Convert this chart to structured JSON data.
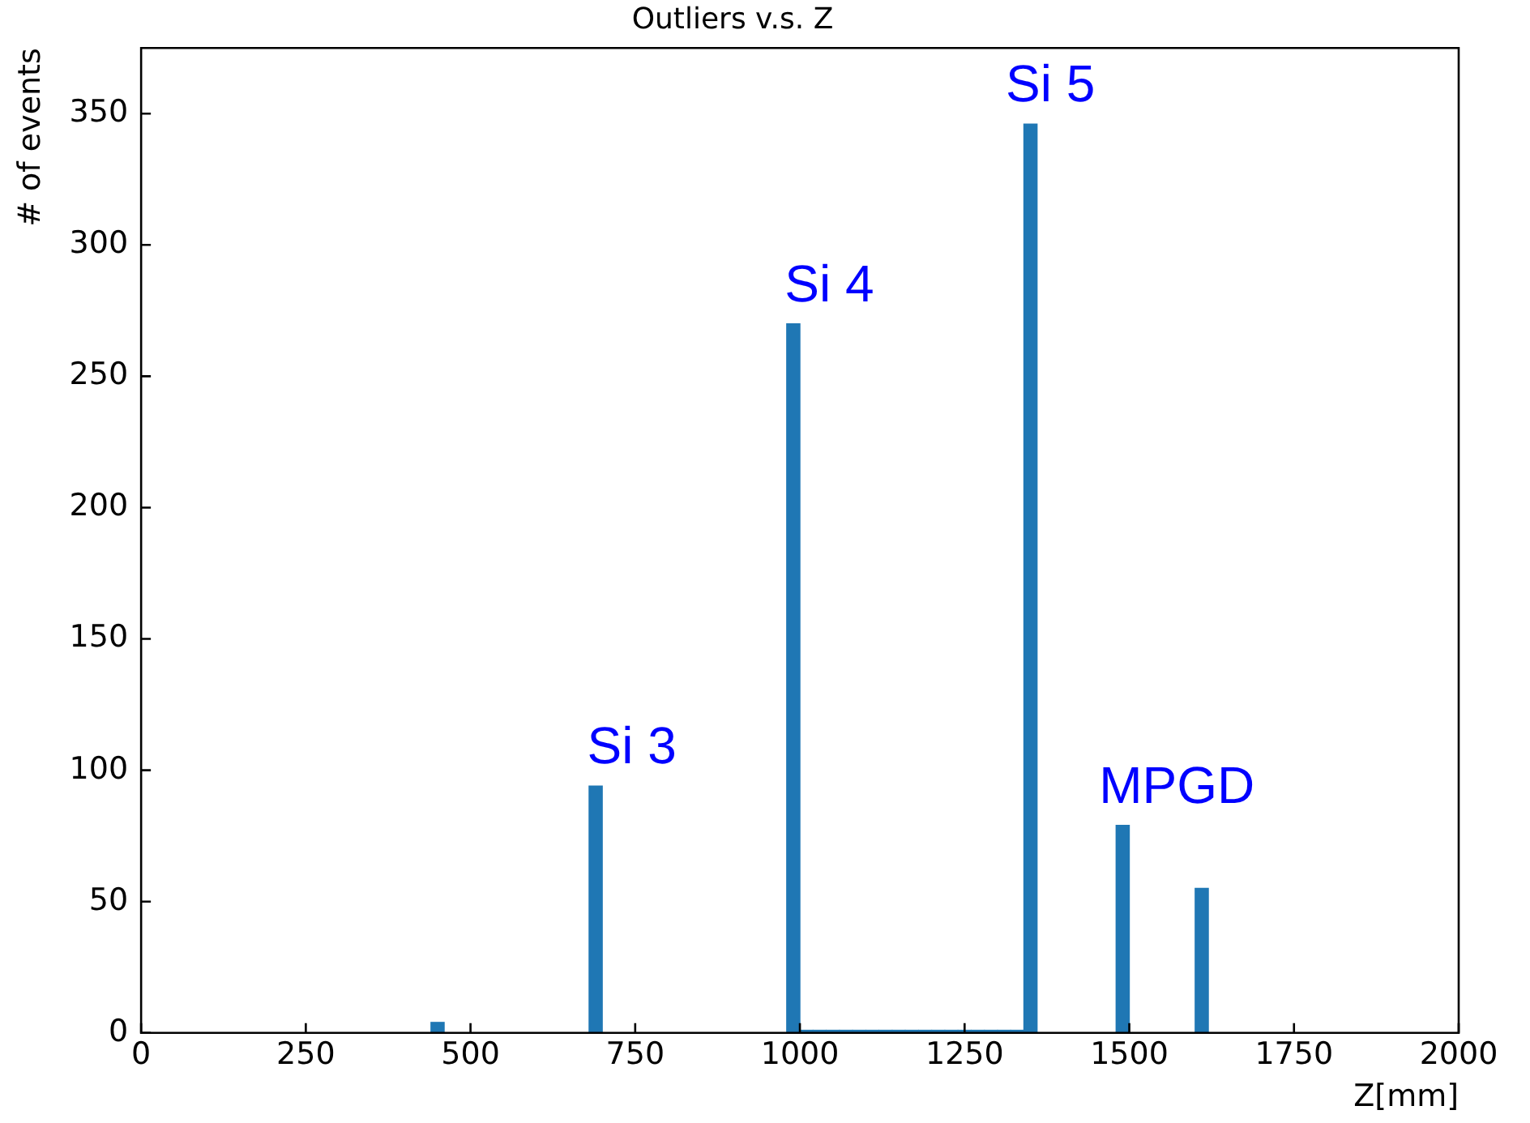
{
  "chart_data": {
    "type": "histogram",
    "title": "Outliers v.s. Z",
    "xlabel": "Z[mm]",
    "ylabel": "# of events",
    "bins": [
      440,
      460,
      480,
      500,
      520,
      540,
      560,
      580,
      600,
      620,
      640,
      660,
      680,
      700,
      720,
      740,
      760,
      780,
      800,
      820,
      840,
      860,
      880,
      900,
      920,
      940,
      960,
      980,
      1000,
      1020,
      1040,
      1060,
      1080,
      1100,
      1120,
      1140,
      1160,
      1180,
      1200,
      1220,
      1240,
      1260,
      1280,
      1300,
      1320,
      1340,
      1360,
      1380,
      1400,
      1420,
      1440,
      1460,
      1480,
      1500,
      1520,
      1540,
      1560,
      1580,
      1600,
      1620
    ],
    "values": [
      4,
      0,
      0,
      0,
      0,
      0,
      0,
      0,
      0,
      0,
      0,
      0,
      94,
      0,
      0,
      0,
      0,
      0,
      0,
      0,
      0,
      0,
      0,
      0,
      0,
      0,
      0,
      270,
      1,
      1,
      1,
      1,
      1,
      1,
      1,
      1,
      1,
      1,
      1,
      1,
      1,
      1,
      1,
      1,
      1,
      346,
      0,
      0,
      0,
      0,
      0,
      0,
      79,
      0,
      0,
      0,
      0,
      0,
      55
    ],
    "color": "#1f77b4",
    "xlim": [
      0,
      2000
    ],
    "xticks": [
      0,
      250,
      500,
      750,
      1000,
      1250,
      1500,
      1750,
      2000
    ],
    "ylim": [
      0,
      375
    ],
    "yticks": [
      0,
      50,
      100,
      150,
      200,
      250,
      300,
      350
    ],
    "grid": false,
    "legend": false,
    "annotations": [
      {
        "text": "Si 3",
        "x": 690,
        "y": 94
      },
      {
        "text": "Si 4",
        "x": 990,
        "y": 270
      },
      {
        "text": "Si 5",
        "x": 1350,
        "y": 346
      },
      {
        "text": "MPGD",
        "x": 1490,
        "y": 79
      }
    ]
  }
}
